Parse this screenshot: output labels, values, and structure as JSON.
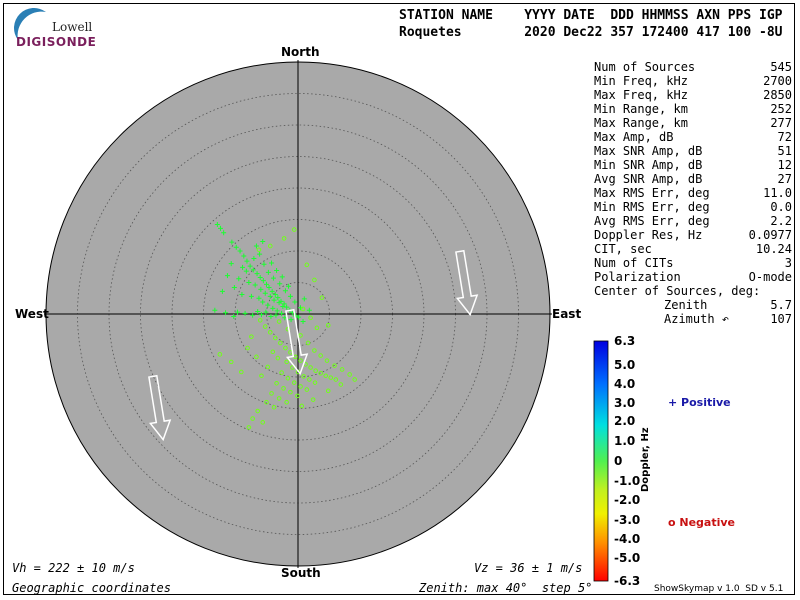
{
  "logo": {
    "line1": "Lowell",
    "line2": "DIGISONDE"
  },
  "header": {
    "line1": "STATION NAME    YYYY DATE  DDD HHMMSS AXN PPS IGP",
    "line2": "Roquetes        2020 Dec22 357 172400 417 100 -8U"
  },
  "stats": [
    {
      "label": "Num of Sources",
      "value": "545"
    },
    {
      "label": "Min Freq, kHz",
      "value": "2700"
    },
    {
      "label": "Max Freq, kHz",
      "value": "2850"
    },
    {
      "label": "Min Range, km",
      "value": "252"
    },
    {
      "label": "Max Range, km",
      "value": "277"
    },
    {
      "label": "Max Amp, dB",
      "value": "72"
    },
    {
      "label": "Max SNR Amp, dB",
      "value": "51"
    },
    {
      "label": "Min SNR Amp, dB",
      "value": "12"
    },
    {
      "label": "Avg SNR Amp, dB",
      "value": "27"
    },
    {
      "label": "Max RMS Err, deg",
      "value": "11.0"
    },
    {
      "label": "Min RMS Err, deg",
      "value": "0.0"
    },
    {
      "label": "Avg RMS Err, deg",
      "value": "2.2"
    },
    {
      "label": "Doppler Res, Hz",
      "value": "0.0977"
    },
    {
      "label": "CIT, sec",
      "value": "10.24"
    },
    {
      "label": "Num of CITs",
      "value": "3"
    },
    {
      "label": "Polarization",
      "value": "O-mode"
    },
    {
      "label": "Center of Sources, deg:",
      "value": ""
    },
    {
      "label": "Zenith",
      "value": "5.7"
    },
    {
      "label": "Azimuth ↶",
      "value": "107"
    }
  ],
  "compass": {
    "north": "North",
    "south": "South",
    "east": "East",
    "west": "West"
  },
  "bottom": {
    "vh": "Vh = 222 ± 10 m/s",
    "vz": "Vz = 36 ± 1 m/s",
    "coords": "Geographic coordinates",
    "zenith": "Zenith: max 40°  step 5°",
    "version": "ShowSkymap v 1.0  SD v 5.1"
  },
  "legend": {
    "positive": "+ Positive",
    "negative": "o Negative",
    "colorbar_title": "Doppler, Hz"
  },
  "colorbar_ticks": [
    "6.3",
    "5.0",
    "4.0",
    "3.0",
    "2.0",
    "1.0",
    "0",
    "-1.0",
    "-2.0",
    "-3.0",
    "-4.0",
    "-5.0",
    "-6.3"
  ],
  "colors": {
    "disk": "#a9a9a9",
    "positive_marker": "#7cf26a",
    "negative_marker": "#b8f04a"
  },
  "chart_data": {
    "type": "scatter",
    "title": "",
    "coordinate_system": "polar sky map (zenith angle, azimuth)",
    "zenith_max_deg": 40,
    "zenith_step_deg": 5,
    "colorbar": {
      "label": "Doppler, Hz",
      "min": -6.3,
      "max": 6.3
    },
    "series": [
      {
        "name": "Positive",
        "marker": "+",
        "doppler_hz": 0.3,
        "points_xy_deg": [
          [
            -12.8,
            14.2
          ],
          [
            -12.3,
            13.6
          ],
          [
            -11.8,
            12.9
          ],
          [
            -10.5,
            11.4
          ],
          [
            -9.8,
            10.6
          ],
          [
            -9.2,
            10.0
          ],
          [
            -8.6,
            9.2
          ],
          [
            -8.1,
            8.4
          ],
          [
            -7.6,
            7.6
          ],
          [
            -7.1,
            7.0
          ],
          [
            -6.5,
            6.4
          ],
          [
            -6.0,
            5.8
          ],
          [
            -5.5,
            5.3
          ],
          [
            -5.0,
            4.7
          ],
          [
            -4.6,
            4.2
          ],
          [
            -4.1,
            3.6
          ],
          [
            -3.6,
            3.1
          ],
          [
            -3.2,
            2.6
          ],
          [
            -2.7,
            2.0
          ],
          [
            -2.2,
            1.6
          ],
          [
            -1.8,
            1.1
          ],
          [
            -1.3,
            0.6
          ],
          [
            -0.9,
            0.2
          ],
          [
            -0.4,
            -0.3
          ],
          [
            -7.8,
            5.0
          ],
          [
            -6.8,
            4.6
          ],
          [
            -5.9,
            3.9
          ],
          [
            -5.2,
            3.3
          ],
          [
            -4.4,
            2.8
          ],
          [
            -3.8,
            2.2
          ],
          [
            -3.0,
            1.8
          ],
          [
            -2.4,
            1.2
          ],
          [
            -8.9,
            3.1
          ],
          [
            -7.4,
            2.8
          ],
          [
            -6.2,
            2.5
          ],
          [
            -5.6,
            1.9
          ],
          [
            -4.8,
            1.4
          ],
          [
            -4.0,
            0.9
          ],
          [
            -3.3,
            0.5
          ],
          [
            -2.6,
            0.1
          ],
          [
            -9.6,
            0.3
          ],
          [
            -8.4,
            0.1
          ],
          [
            -7.2,
            -0.2
          ],
          [
            -6.4,
            0.4
          ],
          [
            -5.8,
            -0.1
          ],
          [
            -5.1,
            0.3
          ],
          [
            -4.3,
            -0.4
          ],
          [
            -3.5,
            -0.2
          ],
          [
            -10.6,
            8.0
          ],
          [
            -11.2,
            6.1
          ],
          [
            -9.4,
            5.6
          ],
          [
            -10.1,
            4.2
          ],
          [
            -8.2,
            6.8
          ],
          [
            -7.0,
            8.8
          ],
          [
            -6.1,
            9.5
          ],
          [
            -5.4,
            7.9
          ],
          [
            -4.7,
            6.6
          ],
          [
            -3.9,
            5.7
          ],
          [
            -2.9,
            4.8
          ],
          [
            -2.0,
            3.7
          ],
          [
            -1.2,
            2.8
          ],
          [
            -0.5,
            1.9
          ],
          [
            0.4,
            1.0
          ],
          [
            1.0,
            2.4
          ],
          [
            1.8,
            0.6
          ],
          [
            -1.5,
            4.4
          ],
          [
            -2.5,
            5.9
          ],
          [
            -3.4,
            6.9
          ],
          [
            -4.2,
            8.1
          ],
          [
            -6.6,
            10.8
          ],
          [
            -5.6,
            11.5
          ],
          [
            -8.8,
            7.4
          ],
          [
            -12.0,
            3.6
          ],
          [
            -13.2,
            0.6
          ],
          [
            -11.5,
            0.2
          ],
          [
            -10.2,
            -0.4
          ],
          [
            -2.1,
            -0.6
          ],
          [
            -1.1,
            -0.9
          ],
          [
            0.1,
            -0.5
          ],
          [
            0.8,
            -1.2
          ]
        ]
      },
      {
        "name": "Negative",
        "marker": "o",
        "doppler_hz": -1.2,
        "points_xy_deg": [
          [
            -6.0,
            -1.0
          ],
          [
            -5.2,
            -2.0
          ],
          [
            -4.4,
            -2.9
          ],
          [
            -3.6,
            -3.8
          ],
          [
            -2.8,
            -4.6
          ],
          [
            -2.0,
            -5.4
          ],
          [
            -1.2,
            -6.1
          ],
          [
            -0.4,
            -6.8
          ],
          [
            0.4,
            -7.4
          ],
          [
            1.2,
            -8.0
          ],
          [
            2.0,
            -8.5
          ],
          [
            2.8,
            -9.0
          ],
          [
            3.6,
            -9.4
          ],
          [
            4.4,
            -9.8
          ],
          [
            5.2,
            -10.1
          ],
          [
            6.0,
            -10.4
          ],
          [
            -1.8,
            -7.6
          ],
          [
            -0.9,
            -8.5
          ],
          [
            0.0,
            -9.2
          ],
          [
            0.9,
            -9.9
          ],
          [
            1.8,
            -10.4
          ],
          [
            2.7,
            -10.9
          ],
          [
            -2.6,
            -9.3
          ],
          [
            -1.6,
            -10.2
          ],
          [
            -0.6,
            -10.9
          ],
          [
            0.4,
            -11.5
          ],
          [
            1.4,
            -12.0
          ],
          [
            -3.4,
            -11.0
          ],
          [
            -2.3,
            -11.8
          ],
          [
            -1.2,
            -12.4
          ],
          [
            -0.1,
            -13.0
          ],
          [
            -4.2,
            -12.6
          ],
          [
            -3.0,
            -13.4
          ],
          [
            -1.8,
            -14.0
          ],
          [
            -5.0,
            -14.0
          ],
          [
            -3.8,
            -14.8
          ],
          [
            -6.4,
            -15.4
          ],
          [
            -7.2,
            -16.6
          ],
          [
            -5.6,
            -17.2
          ],
          [
            -7.8,
            -18.0
          ],
          [
            3.6,
            -6.6
          ],
          [
            4.6,
            -7.4
          ],
          [
            5.8,
            -8.2
          ],
          [
            7.0,
            -8.8
          ],
          [
            8.2,
            -9.6
          ],
          [
            9.0,
            -10.4
          ],
          [
            6.8,
            -11.2
          ],
          [
            4.8,
            -12.2
          ],
          [
            2.4,
            -13.6
          ],
          [
            0.6,
            -14.6
          ],
          [
            -9.0,
            -9.2
          ],
          [
            -10.6,
            -7.6
          ],
          [
            -12.4,
            -6.4
          ],
          [
            -8.0,
            -5.4
          ],
          [
            -6.6,
            -6.8
          ],
          [
            -7.4,
            -3.6
          ],
          [
            -3.0,
            -1.2
          ],
          [
            -1.6,
            -2.4
          ],
          [
            0.4,
            -3.4
          ],
          [
            1.6,
            -4.6
          ],
          [
            2.6,
            -5.8
          ],
          [
            0.8,
            0.8
          ],
          [
            2.0,
            -0.6
          ],
          [
            3.0,
            -2.2
          ],
          [
            -6.2,
            10.2
          ],
          [
            -4.4,
            10.8
          ],
          [
            -2.2,
            12.0
          ],
          [
            -0.6,
            13.4
          ],
          [
            1.4,
            7.8
          ],
          [
            2.6,
            5.4
          ],
          [
            3.8,
            2.6
          ],
          [
            4.8,
            -1.8
          ],
          [
            -4.8,
            -8.4
          ],
          [
            -5.8,
            -9.8
          ],
          [
            -4.0,
            -6.0
          ],
          [
            -3.2,
            -7.0
          ]
        ]
      }
    ],
    "drift_arrows_azimuth_deg": [
      107,
      107,
      107
    ]
  }
}
